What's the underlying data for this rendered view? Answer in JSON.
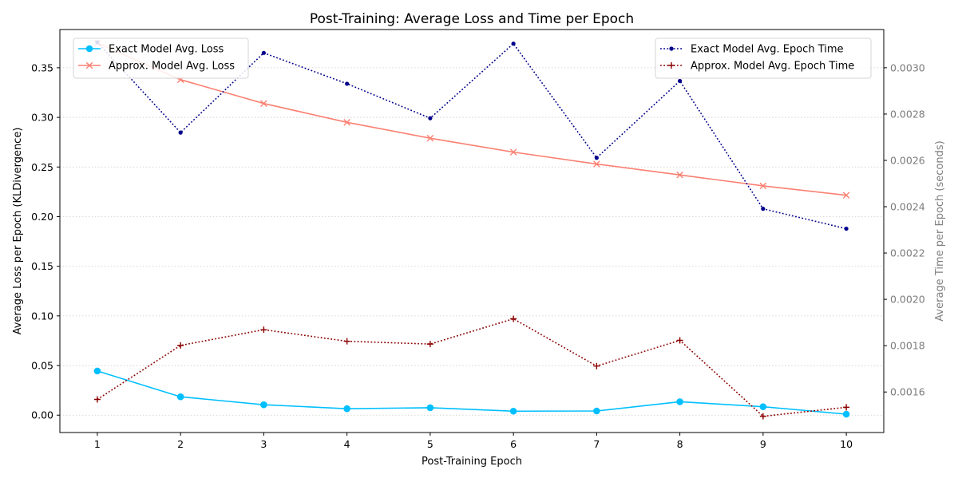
{
  "chart_data": {
    "type": "line",
    "title": "Post-Training: Average Loss and Time per Epoch",
    "xlabel": "Post-Training Epoch",
    "ylabel_left": "Average Loss per Epoch (KLDivergence)",
    "ylabel_right": "Average Time per Epoch (seconds)",
    "x": [
      1,
      2,
      3,
      4,
      5,
      6,
      7,
      8,
      9,
      10
    ],
    "x_ticks": [
      "1",
      "2",
      "3",
      "4",
      "5",
      "6",
      "7",
      "8",
      "9",
      "10"
    ],
    "xlim": [
      0.55,
      10.45
    ],
    "ylim_left": [
      -0.0175,
      0.3885
    ],
    "ylim_right": [
      0.001425,
      0.003165
    ],
    "left_ticks": [
      "0.00",
      "0.05",
      "0.10",
      "0.15",
      "0.20",
      "0.25",
      "0.30",
      "0.35"
    ],
    "right_ticks": [
      "0.0016",
      "0.0018",
      "0.0020",
      "0.0022",
      "0.0024",
      "0.0026",
      "0.0028",
      "0.0030"
    ],
    "grid": "horizontal dotted",
    "legend_left_placement": "top-left",
    "legend_right_placement": "top-right",
    "series": [
      {
        "name": "Exact Model Avg. Loss",
        "axis": "left",
        "color": "#00BFFF",
        "style": "solid",
        "marker": "circle",
        "values": [
          0.0445,
          0.0185,
          0.0105,
          0.0065,
          0.0075,
          0.004,
          0.0042,
          0.0135,
          0.0085,
          0.001
        ]
      },
      {
        "name": "Approx. Model Avg. Loss",
        "axis": "left",
        "color": "#FA8072",
        "style": "solid",
        "marker": "x",
        "values": [
          0.375,
          0.338,
          0.314,
          0.295,
          0.279,
          0.265,
          0.253,
          0.242,
          0.231,
          0.2215
        ]
      },
      {
        "name": "Exact Model Avg. Epoch Time",
        "axis": "right",
        "color": "#00008B",
        "style": "dotted",
        "marker": "dot",
        "values": [
          0.00311,
          0.00272,
          0.003064,
          0.002931,
          0.002782,
          0.003104,
          0.002611,
          0.002943,
          0.002391,
          0.002305
        ]
      },
      {
        "name": "Approx. Model Avg. Epoch Time",
        "axis": "right",
        "color": "#8B0000",
        "style": "dotted",
        "marker": "plus",
        "values": [
          0.001568,
          0.001801,
          0.001869,
          0.001819,
          0.001807,
          0.001916,
          0.001712,
          0.001823,
          0.001495,
          0.001534
        ]
      }
    ]
  }
}
